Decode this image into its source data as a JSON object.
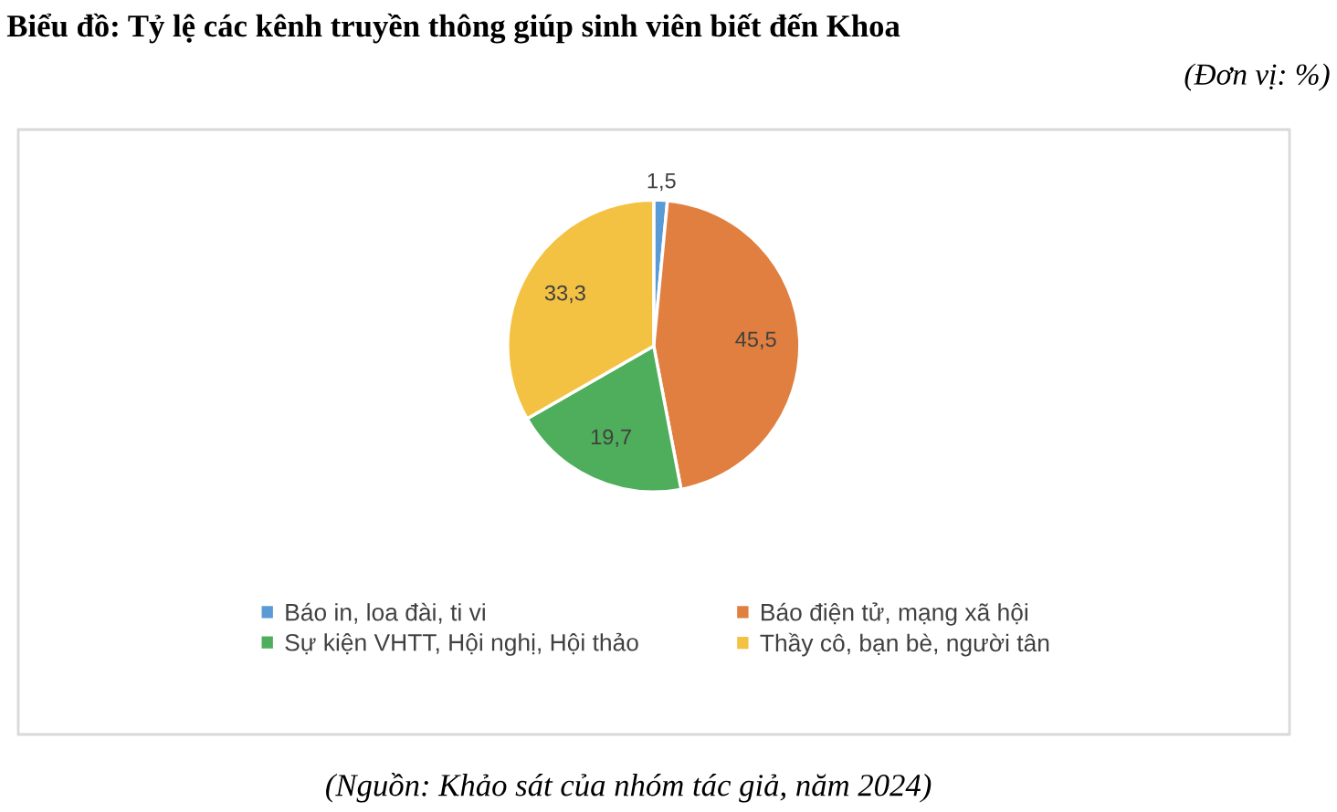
{
  "chart_data": {
    "type": "pie",
    "title": "Biểu đồ: Tỷ lệ các kênh truyền thông giúp sinh viên biết đến Khoa",
    "subtitle": "(Đơn vị: %)",
    "categories": [
      "Báo in, loa đài, ti vi",
      "Báo điện tử, mạng xã hội",
      "Sự kiện VHTT, Hội nghị, Hội thảo",
      "Thầy cô, bạn bè, người tân"
    ],
    "values": [
      1.5,
      45.5,
      19.7,
      33.3
    ],
    "colors": [
      "#5b9bd5",
      "#e07f3f",
      "#4eae5b",
      "#f4c242"
    ],
    "value_labels": [
      "1,5",
      "45,5",
      "19,7",
      "33,3"
    ],
    "legend": "bottom",
    "annotations": [
      "(Nguồn: Khảo sát của nhóm tác giả, năm 2024)"
    ]
  }
}
